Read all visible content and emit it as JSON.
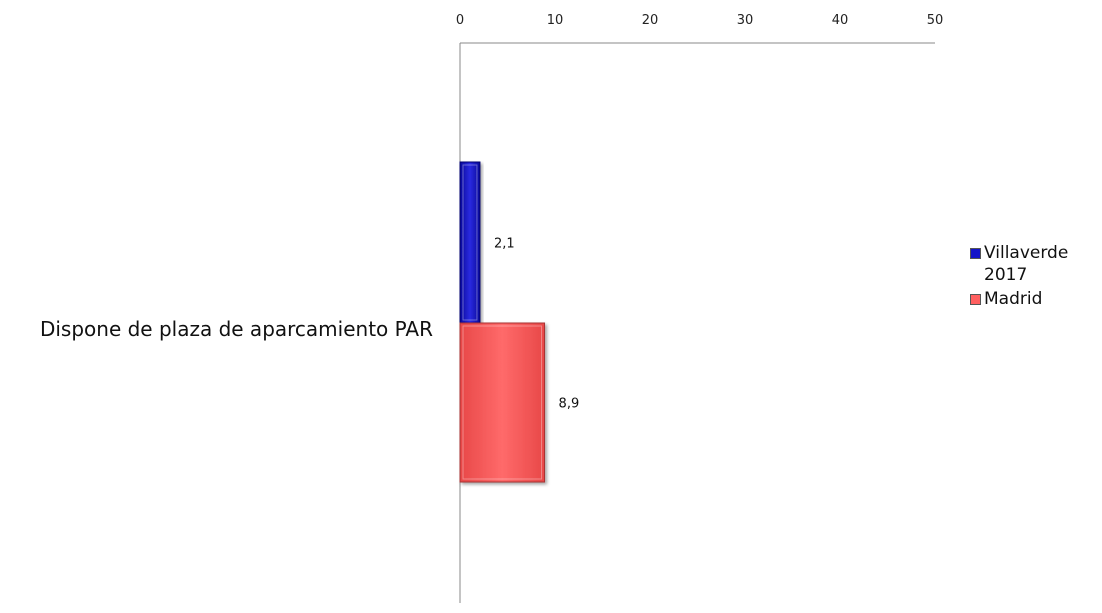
{
  "chart_data": {
    "type": "bar",
    "orientation": "horizontal",
    "categories": [
      "Dispone de plaza de aparcamiento PAR"
    ],
    "series": [
      {
        "name": "Villaverde 2017",
        "values": [
          2.1
        ],
        "labels": [
          "2,1"
        ],
        "color": "#1414c8"
      },
      {
        "name": "Madrid",
        "values": [
          8.9
        ],
        "labels": [
          "8,9"
        ],
        "color": "#ff5f5f"
      }
    ],
    "xlim": [
      0,
      50
    ],
    "xticks": [
      "0",
      "10",
      "20",
      "30",
      "40",
      "50"
    ],
    "axis_position": "top",
    "grid": false,
    "legend_position": "right"
  }
}
